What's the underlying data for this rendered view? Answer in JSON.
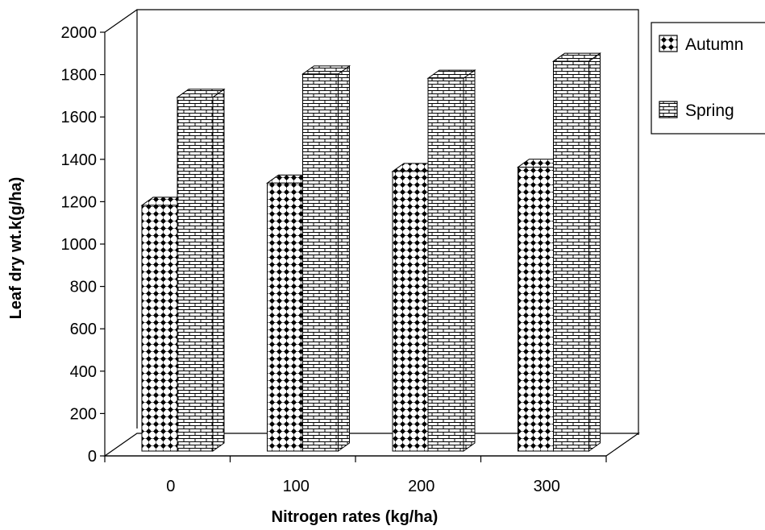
{
  "chart_data": {
    "type": "bar",
    "style": "3d-clustered-column",
    "categories": [
      "0",
      "100",
      "200",
      "300"
    ],
    "series": [
      {
        "name": "Autumn",
        "values": [
          1160,
          1265,
          1320,
          1340
        ],
        "pattern": "dots"
      },
      {
        "name": "Spring",
        "values": [
          1670,
          1780,
          1760,
          1840
        ],
        "pattern": "bricks"
      }
    ],
    "xlabel": "Nitrogen rates (kg/ha)",
    "ylabel": "Leaf dry wt.k(g/ha)",
    "ylim": [
      0,
      2000
    ],
    "yticks": [
      "0",
      "200",
      "400",
      "600",
      "800",
      "1000",
      "1200",
      "1400",
      "1600",
      "1800",
      "2000"
    ],
    "grid": false,
    "legend_position": "right"
  }
}
